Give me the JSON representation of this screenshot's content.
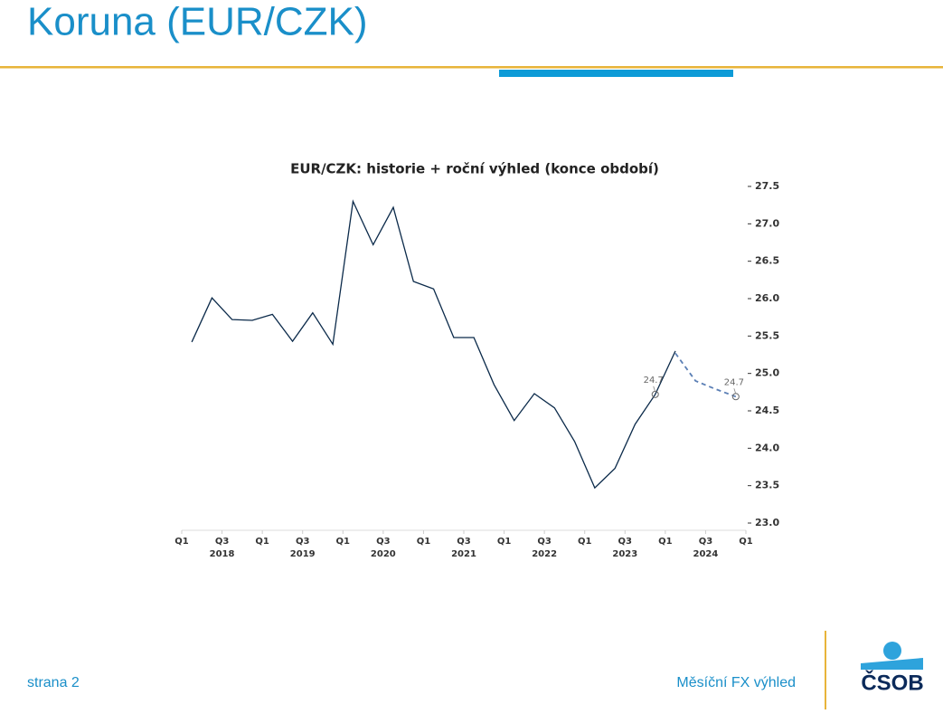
{
  "header": {
    "title": "Koruna (EUR/CZK)"
  },
  "footer": {
    "page": "strana 2",
    "report": "Měsíční FX výhled",
    "logo": "ČSOB"
  },
  "chart_data": {
    "type": "line",
    "title": "EUR/CZK: historie + roční výhled (konce období)",
    "xlim": [
      0,
      28
    ],
    "xticks": [
      {
        "value": 0,
        "label": "Q1"
      },
      {
        "value": 2,
        "label": "Q3"
      },
      {
        "value": 4,
        "label": "Q1"
      },
      {
        "value": 6,
        "label": "Q3"
      },
      {
        "value": 8,
        "label": "Q1"
      },
      {
        "value": 10,
        "label": "Q3"
      },
      {
        "value": 12,
        "label": "Q1"
      },
      {
        "value": 14,
        "label": "Q3"
      },
      {
        "value": 16,
        "label": "Q1"
      },
      {
        "value": 18,
        "label": "Q3"
      },
      {
        "value": 20,
        "label": "Q1"
      },
      {
        "value": 22,
        "label": "Q3"
      },
      {
        "value": 24,
        "label": "Q1"
      },
      {
        "value": 26,
        "label": "Q3"
      },
      {
        "value": 28,
        "label": "Q1"
      }
    ],
    "xtick_groups": [
      {
        "value": 2,
        "label": "2018"
      },
      {
        "value": 6,
        "label": "2019"
      },
      {
        "value": 10,
        "label": "2020"
      },
      {
        "value": 14,
        "label": "2021"
      },
      {
        "value": 18,
        "label": "2022"
      },
      {
        "value": 22,
        "label": "2023"
      },
      {
        "value": 26,
        "label": "2024"
      }
    ],
    "ylim": [
      23.0,
      27.5
    ],
    "yticks": [
      {
        "value": 23,
        "label": "23.0"
      },
      23.5,
      {
        "value": 24,
        "label": "24.0"
      },
      24.5,
      {
        "value": 25,
        "label": "25.0"
      },
      25.5,
      {
        "value": 26,
        "label": "26.0"
      },
      26.5,
      {
        "value": 27,
        "label": "27.0"
      },
      27.5
    ],
    "series": [
      {
        "color": "#0b2a4a",
        "dashed": false,
        "x": [
          0.5,
          1.5,
          2.5,
          3.5,
          4.5,
          5.5,
          6.5,
          7.5,
          8.5,
          9.5,
          10.5,
          11.5,
          12.5,
          13.5,
          14.5,
          15.5,
          16.5,
          17.5,
          18.5,
          19.5,
          20.5,
          21.5,
          22.5,
          23.5,
          24.5
        ],
        "values": [
          25.42,
          26.01,
          25.72,
          25.71,
          25.79,
          25.43,
          25.81,
          25.39,
          27.3,
          26.72,
          27.22,
          26.23,
          26.13,
          25.48,
          25.48,
          24.85,
          24.37,
          24.73,
          24.54,
          24.09,
          23.47,
          23.73,
          24.32,
          24.72,
          25.3
        ]
      },
      {
        "color": "#5b7fb5",
        "dashed": true,
        "x": [
          24.5,
          25.5,
          26.5,
          27.5
        ],
        "values": [
          25.27,
          24.9,
          24.79,
          24.69
        ]
      }
    ],
    "annotations": [
      {
        "x": 23.5,
        "y": 24.72,
        "label": "24.7"
      },
      {
        "x": 27.5,
        "y": 24.69,
        "label": "24.7"
      }
    ]
  }
}
